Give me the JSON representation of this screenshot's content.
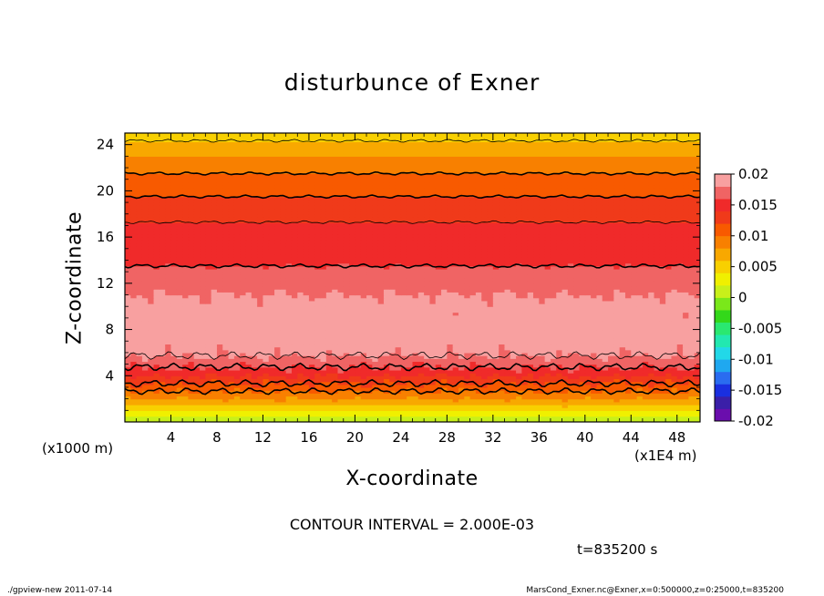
{
  "chart_data": {
    "type": "heatmap",
    "title": "disturbunce of Exner",
    "xlabel": "X-coordinate",
    "ylabel": "Z-coordinate",
    "x_unit_label": "(x1000 m)",
    "x_multiplier_label": "(x1E4 m)",
    "xlim": [
      0,
      50
    ],
    "ylim": [
      0,
      25
    ],
    "x_ticks": [
      4,
      8,
      12,
      16,
      20,
      24,
      28,
      32,
      36,
      40,
      44,
      48
    ],
    "y_ticks": [
      4,
      8,
      12,
      16,
      20,
      24
    ],
    "contour_interval_label": "CONTOUR INTERVAL = 2.000E-03",
    "time_label": "t=835200 s",
    "colorbar": {
      "range": [
        -0.02,
        0.02
      ],
      "labels": [
        "0.02",
        "0.015",
        "0.01",
        "0.005",
        "0",
        "-0.005",
        "-0.01",
        "-0.015",
        "-0.02"
      ],
      "colors": [
        "#6a0dad",
        "#3a1fa8",
        "#1a2fe0",
        "#2a6cf0",
        "#1fa8f0",
        "#22d8e8",
        "#22e8b0",
        "#2ae870",
        "#33d81a",
        "#7ae81a",
        "#c8f01a",
        "#f0f000",
        "#f8d000",
        "#f8a800",
        "#f88000",
        "#f85a00",
        "#f03a1a",
        "#f02a2a",
        "#f06464",
        "#f8a0a0"
      ]
    },
    "profile": {
      "z": [
        0,
        0.5,
        1,
        1.5,
        2,
        2.5,
        3,
        3.5,
        4,
        4.5,
        5,
        5.5,
        6,
        7,
        8,
        9,
        10,
        11,
        12,
        13,
        14,
        15,
        16,
        17,
        18,
        19,
        20,
        21,
        22,
        23,
        24,
        25
      ],
      "value": [
        0.0005,
        0.002,
        0.004,
        0.006,
        0.008,
        0.0095,
        0.011,
        0.0125,
        0.014,
        0.0155,
        0.0165,
        0.0175,
        0.0185,
        0.0195,
        0.02,
        0.0195,
        0.019,
        0.018,
        0.0172,
        0.0162,
        0.0158,
        0.0154,
        0.015,
        0.0142,
        0.0135,
        0.0125,
        0.0115,
        0.0105,
        0.0095,
        0.008,
        0.0065,
        0.005
      ]
    }
  },
  "footer": {
    "left": "./gpview-new  2011-07-14",
    "right": "MarsCond_Exner.nc@Exner,x=0:500000,z=0:25000,t=835200"
  }
}
